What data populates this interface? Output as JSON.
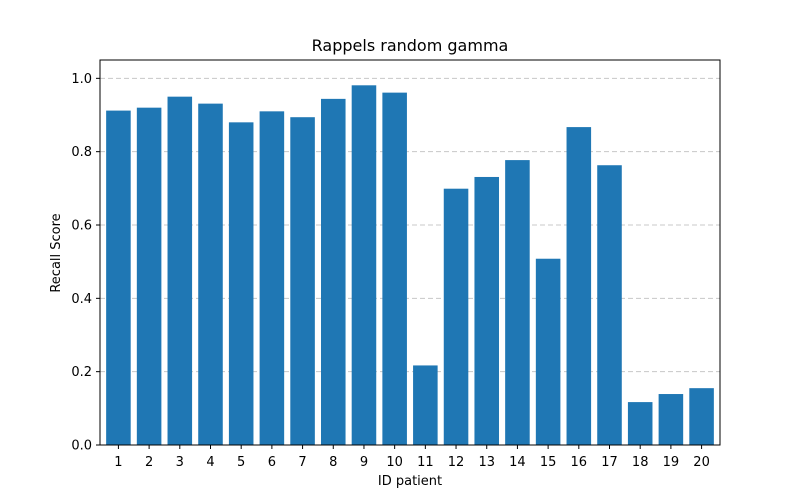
{
  "chart_data": {
    "type": "bar",
    "title": "Rappels random gamma",
    "xlabel": "ID patient",
    "ylabel": "Recall Score",
    "categories": [
      "1",
      "2",
      "3",
      "4",
      "5",
      "6",
      "7",
      "8",
      "9",
      "10",
      "11",
      "12",
      "13",
      "14",
      "15",
      "16",
      "17",
      "18",
      "19",
      "20"
    ],
    "values": [
      0.912,
      0.92,
      0.95,
      0.931,
      0.88,
      0.91,
      0.894,
      0.944,
      0.981,
      0.961,
      0.217,
      0.699,
      0.731,
      0.777,
      0.508,
      0.867,
      0.763,
      0.117,
      0.139,
      0.155
    ],
    "ylim": [
      0,
      1.0
    ],
    "yticks": [
      "0.0",
      "0.2",
      "0.4",
      "0.6",
      "0.8",
      "1.0"
    ],
    "grid": "y-dashed",
    "legend": "none",
    "bar_color": "#1f77b4",
    "grid_color": "#c8c8c8"
  }
}
